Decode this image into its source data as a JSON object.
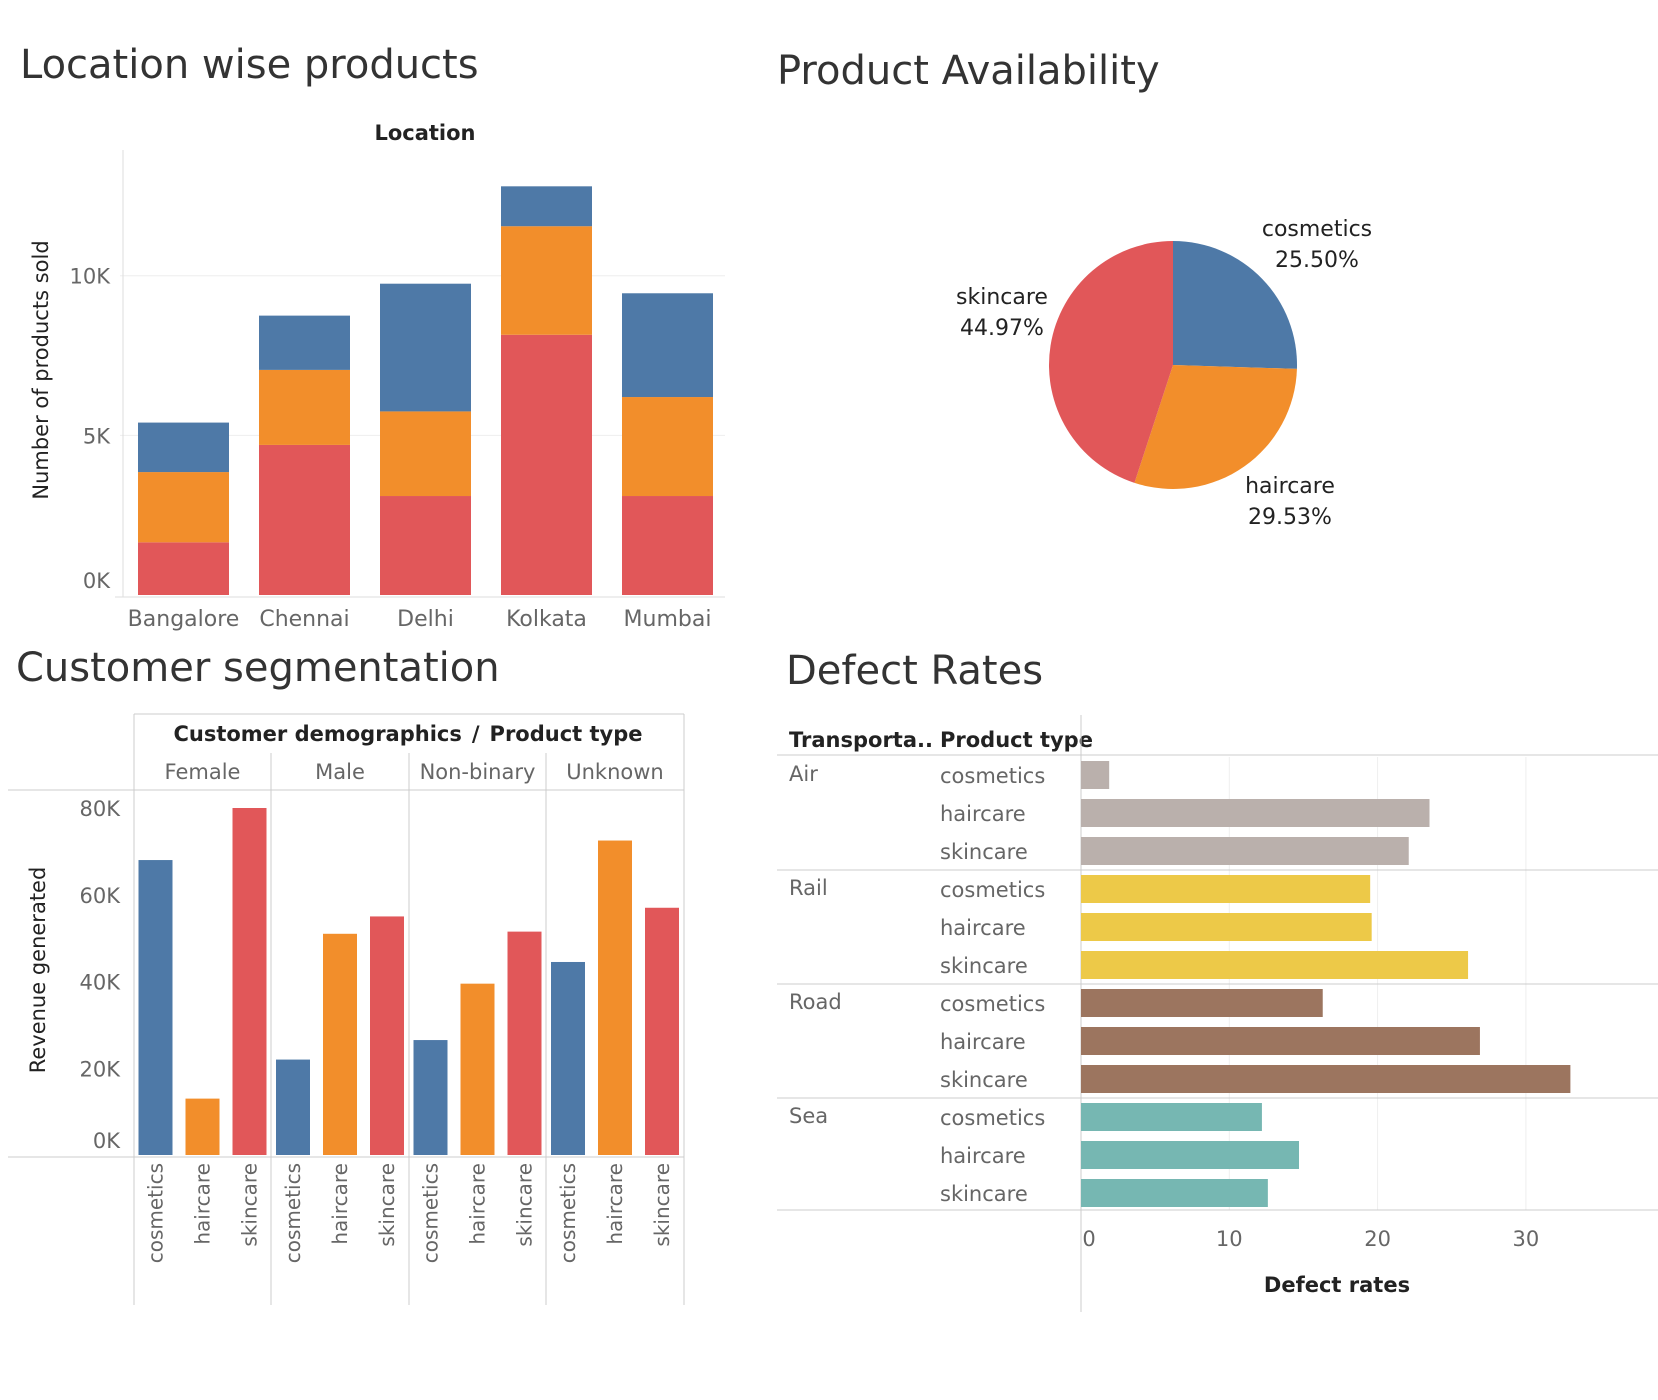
{
  "chart_data": [
    {
      "type": "bar",
      "stacked": true,
      "title": "Location wise products",
      "column_header": "Location",
      "ylabel": "Number of products sold",
      "categories": [
        "Bangalore",
        "Chennai",
        "Delhi",
        "Kolkata",
        "Mumbai"
      ],
      "yticks": [
        "0K",
        "5K",
        "10K"
      ],
      "tick_values": [
        0,
        5000,
        10000
      ],
      "ylim": [
        0,
        14000
      ],
      "series": [
        {
          "product": "skincare",
          "color": "#e15759",
          "values": [
            1650,
            4700,
            3100,
            8150,
            3100
          ]
        },
        {
          "product": "haircare",
          "color": "#f28e2b",
          "values": [
            2200,
            2350,
            2650,
            3400,
            3100
          ]
        },
        {
          "product": "cosmetics",
          "color": "#4e79a7",
          "values": [
            1550,
            1700,
            4000,
            1250,
            3250
          ]
        }
      ]
    },
    {
      "type": "pie",
      "title": "Product Availability",
      "slices": [
        {
          "label": "cosmetics",
          "pct_text": "25.50%",
          "value": 25.5,
          "color": "#4e79a7"
        },
        {
          "label": "haircare",
          "pct_text": "29.53%",
          "value": 29.53,
          "color": "#f28e2b"
        },
        {
          "label": "skincare",
          "pct_text": "44.97%",
          "value": 44.97,
          "color": "#e15759"
        }
      ]
    },
    {
      "type": "bar",
      "title": "Customer segmentation",
      "header_left": "Customer demographics",
      "header_sep": "/",
      "header_right": "Product type",
      "ylabel": "Revenue generated",
      "yticks": [
        "0K",
        "20K",
        "40K",
        "60K",
        "80K"
      ],
      "tick_values": [
        0,
        20000,
        40000,
        60000,
        80000
      ],
      "ylim": [
        0,
        82000
      ],
      "groups": [
        {
          "name": "Female",
          "bars": [
            {
              "label": "cosmetics",
              "value": 68000,
              "color": "#4e79a7"
            },
            {
              "label": "haircare",
              "value": 13000,
              "color": "#f28e2b"
            },
            {
              "label": "skincare",
              "value": 80000,
              "color": "#e15759"
            }
          ]
        },
        {
          "name": "Male",
          "bars": [
            {
              "label": "cosmetics",
              "value": 22000,
              "color": "#4e79a7"
            },
            {
              "label": "haircare",
              "value": 51000,
              "color": "#f28e2b"
            },
            {
              "label": "skincare",
              "value": 55000,
              "color": "#e15759"
            }
          ]
        },
        {
          "name": "Non-binary",
          "bars": [
            {
              "label": "cosmetics",
              "value": 26500,
              "color": "#4e79a7"
            },
            {
              "label": "haircare",
              "value": 39500,
              "color": "#f28e2b"
            },
            {
              "label": "skincare",
              "value": 51500,
              "color": "#e15759"
            }
          ]
        },
        {
          "name": "Unknown",
          "bars": [
            {
              "label": "cosmetics",
              "value": 44500,
              "color": "#4e79a7"
            },
            {
              "label": "haircare",
              "value": 72500,
              "color": "#f28e2b"
            },
            {
              "label": "skincare",
              "value": 57000,
              "color": "#e15759"
            }
          ]
        }
      ]
    },
    {
      "type": "bar",
      "orientation": "horizontal",
      "title": "Defect Rates",
      "col1_header": "Transporta..",
      "col2_header": "Product type",
      "xlabel": "Defect rates",
      "xticks": [
        "0",
        "10",
        "20",
        "30"
      ],
      "tick_values": [
        0,
        10,
        20,
        30
      ],
      "groups": [
        {
          "name": "Air",
          "color": "#bab0ac",
          "rows": [
            {
              "label": "cosmetics",
              "value": 1.9
            },
            {
              "label": "haircare",
              "value": 23.5
            },
            {
              "label": "skincare",
              "value": 22.1
            }
          ]
        },
        {
          "name": "Rail",
          "color": "#edc948",
          "rows": [
            {
              "label": "cosmetics",
              "value": 19.5
            },
            {
              "label": "haircare",
              "value": 19.6
            },
            {
              "label": "skincare",
              "value": 26.1
            }
          ]
        },
        {
          "name": "Road",
          "color": "#9c755f",
          "rows": [
            {
              "label": "cosmetics",
              "value": 16.3
            },
            {
              "label": "haircare",
              "value": 26.9
            },
            {
              "label": "skincare",
              "value": 33.0
            }
          ]
        },
        {
          "name": "Sea",
          "color": "#76b7b2",
          "rows": [
            {
              "label": "cosmetics",
              "value": 12.2
            },
            {
              "label": "haircare",
              "value": 14.7
            },
            {
              "label": "skincare",
              "value": 12.6
            }
          ]
        }
      ]
    }
  ]
}
